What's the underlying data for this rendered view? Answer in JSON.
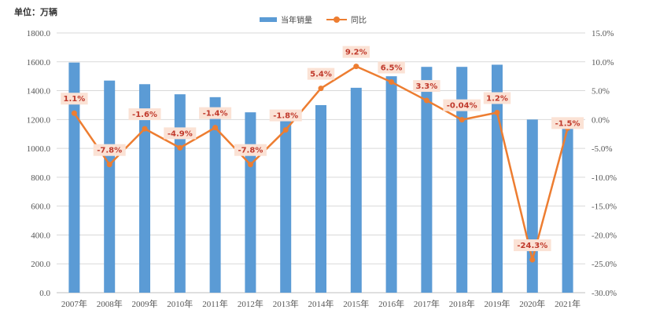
{
  "unit_label": "单位：万辆",
  "colors": {
    "bar": "#5b9bd5",
    "line": "#ed7d31",
    "label_text": "#c0392b",
    "label_bg": "#fbe2d5",
    "grid": "#d9d9d9",
    "axis_text": "#555555"
  },
  "chart_data": {
    "type": "bar",
    "categories": [
      "2007年",
      "2008年",
      "2009年",
      "2010年",
      "2011年",
      "2012年",
      "2013年",
      "2014年",
      "2015年",
      "2016年",
      "2017年",
      "2018年",
      "2019年",
      "2020年",
      "2021年"
    ],
    "series": [
      {
        "name": "当年销量",
        "type": "bar",
        "axis": "left",
        "values": [
          1595,
          1470,
          1445,
          1375,
          1355,
          1250,
          1225,
          1300,
          1420,
          1500,
          1565,
          1565,
          1580,
          1200,
          1180
        ]
      },
      {
        "name": "同比",
        "type": "line",
        "axis": "right",
        "values": [
          1.1,
          -7.8,
          -1.6,
          -4.9,
          -1.4,
          -7.8,
          -1.8,
          5.4,
          9.2,
          6.5,
          3.3,
          -0.04,
          1.2,
          -24.3,
          -1.5
        ],
        "labels": [
          "1.1%",
          "-7.8%",
          "-1.6%",
          "-4.9%",
          "-1.4%",
          "-7.8%",
          "-1.8%",
          "5.4%",
          "9.2%",
          "6.5%",
          "3.3%",
          "-0.04%",
          "1.2%",
          "-24.3%",
          "-1.5%"
        ]
      }
    ],
    "y_left": {
      "ylim": [
        0,
        1800
      ],
      "ticks": [
        "0.0",
        "200.0",
        "400.0",
        "600.0",
        "800.0",
        "1000.0",
        "1200.0",
        "1400.0",
        "1600.0",
        "1800.0"
      ]
    },
    "y_right": {
      "ylim": [
        -30,
        15
      ],
      "ticks": [
        "-30.0%",
        "-25.0%",
        "-20.0%",
        "-15.0%",
        "-10.0%",
        "-5.0%",
        "0.0%",
        "5.0%",
        "10.0%",
        "15.0%"
      ]
    },
    "grid": true,
    "legend_position": "top-center"
  }
}
